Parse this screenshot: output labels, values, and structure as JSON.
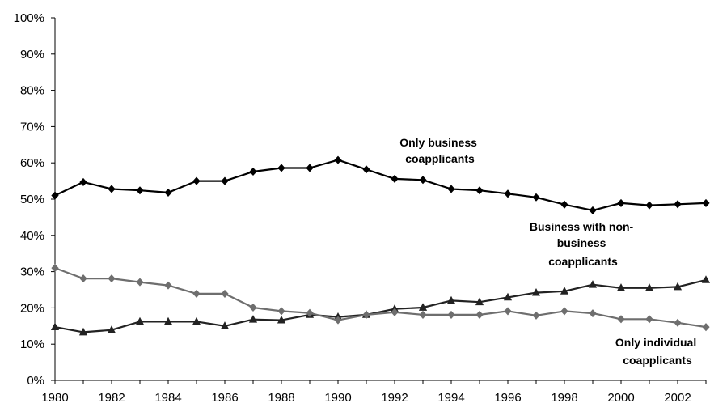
{
  "chart_data": {
    "type": "line",
    "title": "",
    "xlabel": "",
    "ylabel": "",
    "ylim": [
      0,
      100
    ],
    "y_ticks": [
      "0%",
      "10%",
      "20%",
      "30%",
      "40%",
      "50%",
      "60%",
      "70%",
      "80%",
      "90%",
      "100%"
    ],
    "x_ticks": [
      "1980",
      "1982",
      "1984",
      "1986",
      "1988",
      "1990",
      "1992",
      "1994",
      "1996",
      "1998",
      "2000",
      "2002"
    ],
    "x": [
      1980,
      1981,
      1982,
      1983,
      1984,
      1985,
      1986,
      1987,
      1988,
      1989,
      1990,
      1991,
      1992,
      1993,
      1994,
      1995,
      1996,
      1997,
      1998,
      1999,
      2000,
      2001,
      2002,
      2003
    ],
    "grid": false,
    "series": [
      {
        "key": "only_business",
        "label_lines": [
          "Only business",
          "coapplicants"
        ],
        "color": "#000000",
        "marker": "diamond",
        "values": [
          51.0,
          54.7,
          52.8,
          52.4,
          51.8,
          55.0,
          55.0,
          57.6,
          58.6,
          58.6,
          60.8,
          58.2,
          55.6,
          55.3,
          52.8,
          52.4,
          51.5,
          50.5,
          48.5,
          46.9,
          48.9,
          48.3,
          48.6,
          48.9
        ]
      },
      {
        "key": "business_with_non_business",
        "label_lines": [
          "Business with non-",
          "business",
          "coapplicants"
        ],
        "color": "#222222",
        "marker": "triangle",
        "values": [
          14.7,
          13.3,
          13.9,
          16.2,
          16.2,
          16.2,
          15.0,
          16.8,
          16.6,
          18.1,
          17.5,
          18.1,
          19.7,
          20.1,
          22.0,
          21.6,
          22.9,
          24.2,
          24.6,
          26.4,
          25.5,
          25.5,
          25.8,
          27.7
        ]
      },
      {
        "key": "only_individual",
        "label_lines": [
          "Only individual",
          "coapplicants"
        ],
        "color": "#6e6e6e",
        "marker": "diamond",
        "values": [
          31.0,
          28.1,
          28.1,
          27.1,
          26.2,
          23.9,
          23.9,
          20.1,
          19.1,
          18.6,
          16.6,
          18.1,
          18.8,
          18.1,
          18.1,
          18.1,
          19.1,
          17.9,
          19.1,
          18.5,
          16.9,
          16.9,
          15.9,
          14.7
        ]
      }
    ]
  }
}
